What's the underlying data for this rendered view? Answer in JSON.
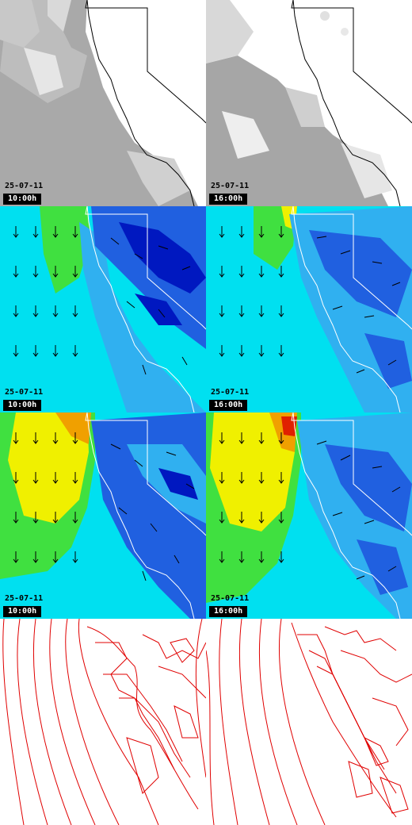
{
  "panels": [
    {
      "row": "clouds",
      "date": "25-07-11",
      "time": "10:00h"
    },
    {
      "row": "clouds",
      "date": "25-07-11",
      "time": "16:00h"
    },
    {
      "row": "wind-low",
      "date": "25-07-11",
      "time": "10:00h"
    },
    {
      "row": "wind-low",
      "date": "25-07-11",
      "time": "16:00h"
    },
    {
      "row": "wind-high",
      "date": "25-07-11",
      "time": "10:00h"
    },
    {
      "row": "wind-high",
      "date": "25-07-11",
      "time": "16:00h"
    },
    {
      "row": "contours",
      "date": "",
      "time": ""
    },
    {
      "row": "contours",
      "date": "",
      "time": ""
    }
  ],
  "colors": {
    "cloud_low": "#a8a8a8",
    "cloud_high": "#d6d6d6",
    "wind_cyan": "#00e0f0",
    "wind_lightblue": "#30b0f0",
    "wind_blue": "#2060e0",
    "wind_darkblue": "#0018c0",
    "wind_green": "#40e040",
    "wind_yellow": "#f0f000",
    "wind_orange": "#f0a000",
    "wind_red": "#e02000",
    "contour_line": "#e00000"
  }
}
